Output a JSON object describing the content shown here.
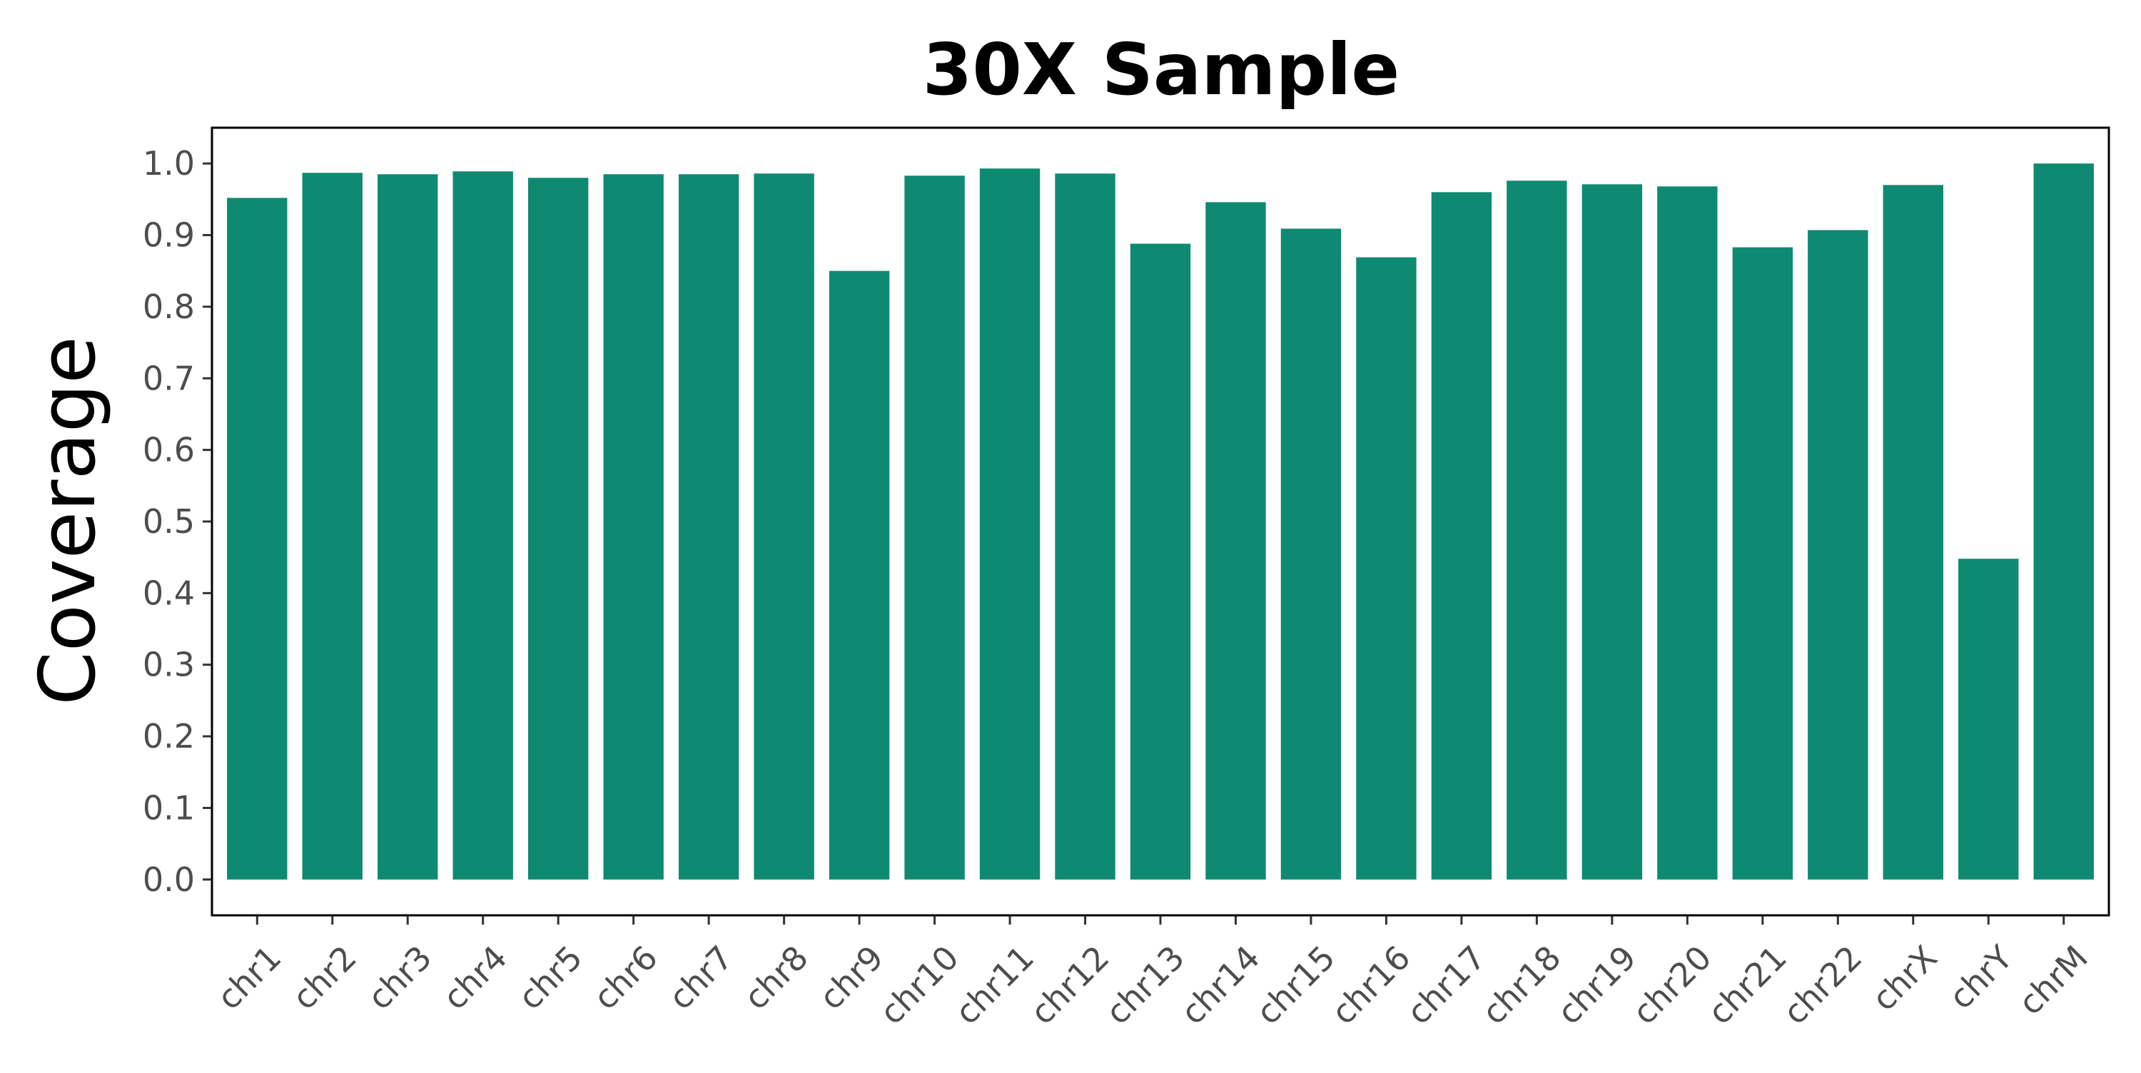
{
  "chart_data": {
    "type": "bar",
    "title": "30X Sample",
    "xlabel": "",
    "ylabel": "Coverage",
    "categories": [
      "chr1",
      "chr2",
      "chr3",
      "chr4",
      "chr5",
      "chr6",
      "chr7",
      "chr8",
      "chr9",
      "chr10",
      "chr11",
      "chr12",
      "chr13",
      "chr14",
      "chr15",
      "chr16",
      "chr17",
      "chr18",
      "chr19",
      "chr20",
      "chr21",
      "chr22",
      "chrX",
      "chrY",
      "chrM"
    ],
    "values": [
      0.952,
      0.987,
      0.985,
      0.989,
      0.98,
      0.985,
      0.985,
      0.986,
      0.85,
      0.983,
      0.993,
      0.986,
      0.888,
      0.946,
      0.909,
      0.869,
      0.96,
      0.976,
      0.971,
      0.968,
      0.883,
      0.907,
      0.97,
      0.448,
      1.0
    ],
    "ylim": [
      -0.05,
      1.05
    ],
    "yticks": [
      "0.0",
      "0.1",
      "0.2",
      "0.3",
      "0.4",
      "0.5",
      "0.6",
      "0.7",
      "0.8",
      "0.9",
      "1.0"
    ],
    "grid": false,
    "legend": "none",
    "bar_color": "#0e8a72"
  }
}
